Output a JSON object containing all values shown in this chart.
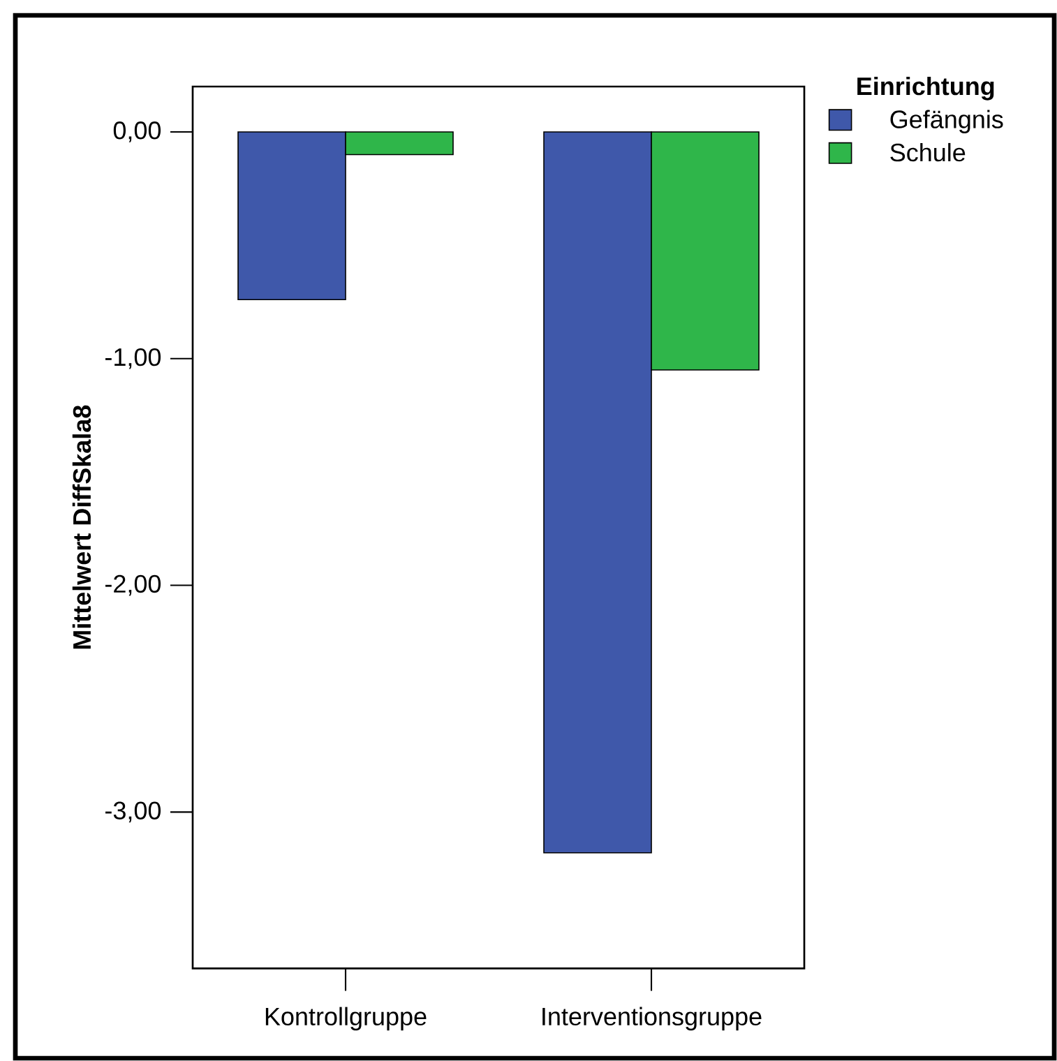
{
  "chart_data": {
    "type": "bar",
    "ylabel": "Mittelwert DiffSkala8",
    "legend_title": "Einrichtung",
    "legend": "top right",
    "categories": [
      "Kontrollgruppe",
      "Interventionsgruppe"
    ],
    "series": [
      {
        "name": "Gefängnis",
        "color": "#3f58aa",
        "values": [
          -0.74,
          -3.18
        ]
      },
      {
        "name": "Schule",
        "color": "#2fb64a",
        "values": [
          -0.1,
          -1.05
        ]
      }
    ],
    "ylim": [
      -3.69,
      0.2
    ],
    "yticks": [
      {
        "value": 0,
        "label": "0,00"
      },
      {
        "value": -1,
        "label": "-1,00"
      },
      {
        "value": -2,
        "label": "-2,00"
      },
      {
        "value": -3,
        "label": "-3,00"
      }
    ]
  }
}
